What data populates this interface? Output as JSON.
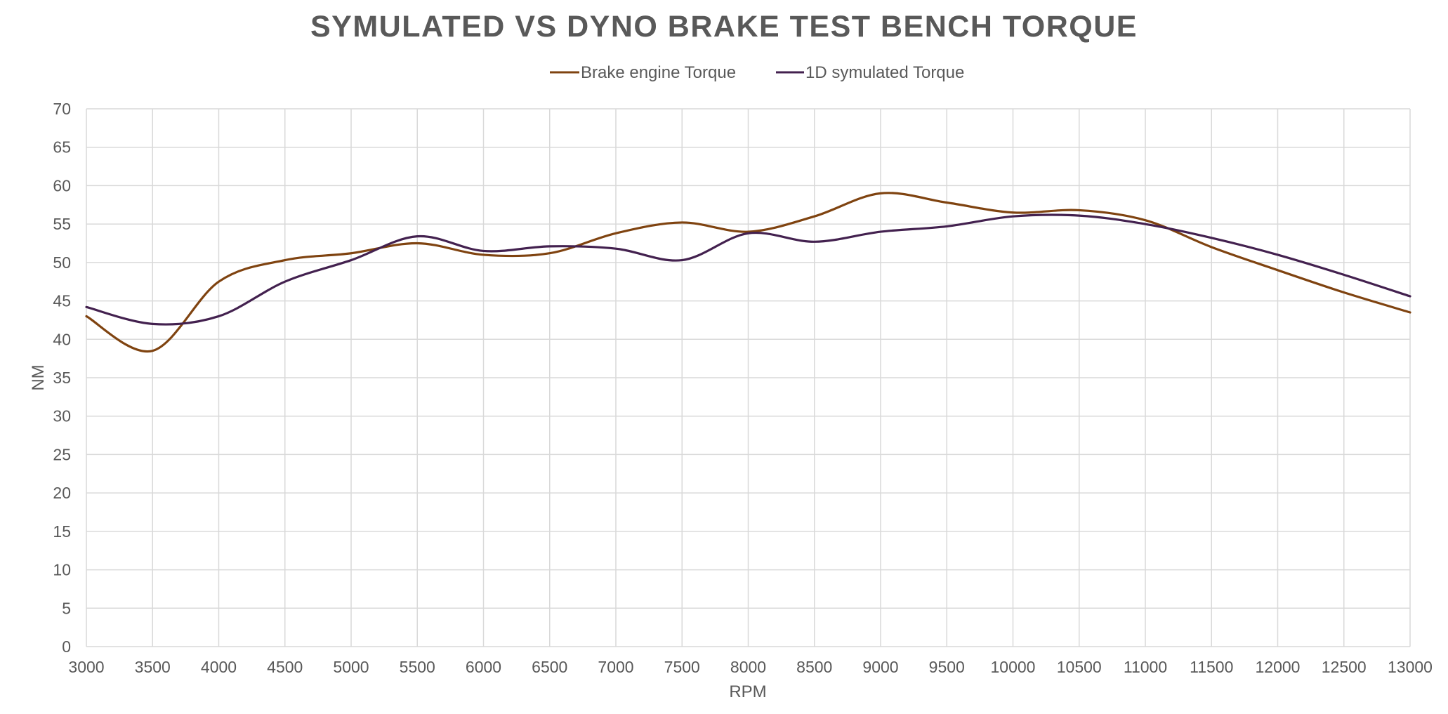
{
  "chart_data": {
    "type": "line",
    "title": "SYMULATED VS DYNO BRAKE TEST BENCH TORQUE",
    "xlabel": "RPM",
    "ylabel": "NM",
    "xlim": [
      3000,
      13000
    ],
    "ylim": [
      0,
      70
    ],
    "x_ticks": [
      3000,
      3500,
      4000,
      4500,
      5000,
      5500,
      6000,
      6500,
      7000,
      7500,
      8000,
      8500,
      9000,
      9500,
      10000,
      10500,
      11000,
      11500,
      12000,
      12500,
      13000
    ],
    "y_ticks": [
      0,
      5,
      10,
      15,
      20,
      25,
      30,
      35,
      40,
      45,
      50,
      55,
      60,
      65,
      70
    ],
    "grid": true,
    "legend_position": "top",
    "smooth": true,
    "series": [
      {
        "name": "Brake engine Torque",
        "color": "#7f4310",
        "x": [
          3000,
          3500,
          4000,
          4500,
          5000,
          5500,
          6000,
          6500,
          7000,
          7500,
          8000,
          8500,
          9000,
          9500,
          10000,
          10500,
          11000,
          11500,
          12000,
          12500,
          13000
        ],
        "y": [
          43,
          38.5,
          47.5,
          50.3,
          51.2,
          52.5,
          51,
          51.2,
          53.8,
          55.2,
          54,
          56,
          59,
          57.8,
          56.5,
          56.8,
          55.5,
          52,
          49,
          46.1,
          43.5
        ]
      },
      {
        "name": "1D symulated Torque",
        "color": "#43214f",
        "x": [
          3000,
          3500,
          4000,
          4500,
          5000,
          5500,
          6000,
          6500,
          7000,
          7500,
          8000,
          8500,
          9000,
          9500,
          10000,
          10500,
          11000,
          11500,
          12000,
          12500,
          13000
        ],
        "y": [
          44.2,
          42,
          43,
          47.5,
          50.3,
          53.4,
          51.5,
          52.1,
          51.8,
          50.3,
          53.8,
          52.7,
          54,
          54.7,
          56,
          56.1,
          55,
          53.2,
          51,
          48.4,
          45.6
        ]
      }
    ]
  }
}
